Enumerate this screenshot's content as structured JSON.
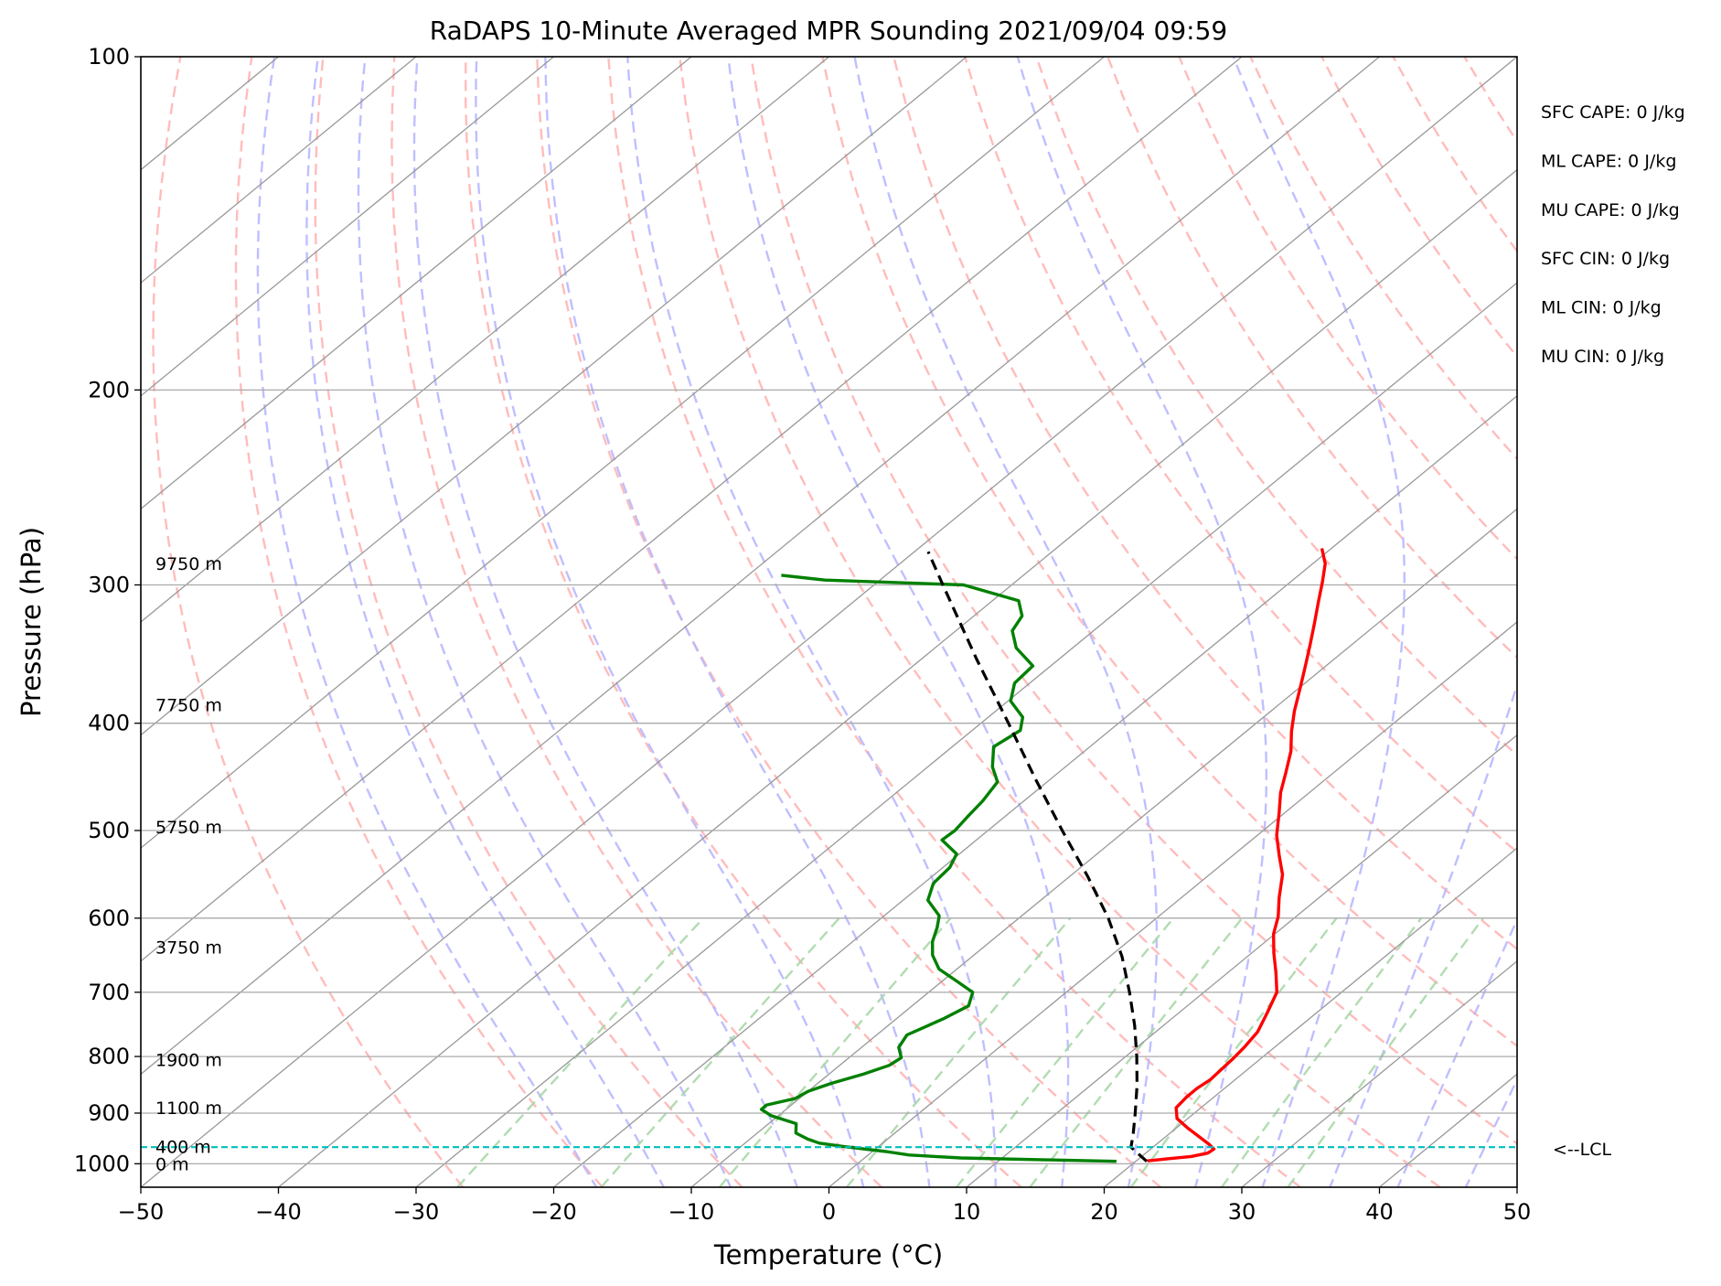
{
  "chart_data": {
    "type": "line",
    "title": "RaDAPS 10-Minute Averaged MPR Sounding 2021/09/04 09:59",
    "xlabel": "Temperature (°C)",
    "ylabel": "Pressure (hPa)",
    "xlim": [
      -50,
      50
    ],
    "ylim": [
      1050,
      100
    ],
    "y_scale": "log",
    "skew_t": true,
    "grid": true,
    "x_ticks": [
      "−50",
      "−40",
      "−30",
      "−20",
      "−10",
      "0",
      "10",
      "20",
      "30",
      "40",
      "50"
    ],
    "y_ticks": [
      "100",
      "200",
      "300",
      "400",
      "500",
      "600",
      "700",
      "800",
      "900",
      "1000"
    ],
    "height_labels": [
      {
        "text": "0 m",
        "p": 1000
      },
      {
        "text": "400 m",
        "p": 965
      },
      {
        "text": "1100 m",
        "p": 890
      },
      {
        "text": "1900 m",
        "p": 805
      },
      {
        "text": "3750 m",
        "p": 637
      },
      {
        "text": "5750 m",
        "p": 496
      },
      {
        "text": "7750 m",
        "p": 385
      },
      {
        "text": "9750 m",
        "p": 287
      }
    ],
    "indices": [
      "SFC CAPE: 0 J/kg",
      "ML CAPE: 0 J/kg",
      "MU CAPE: 0 J/kg",
      "SFC CIN: 0 J/kg",
      "ML CIN: 0 J/kg",
      "MU CIN: 0 J/kg"
    ],
    "lcl_label": "<--LCL",
    "lcl_pressure": 966,
    "colors": {
      "temperature": "#ff0000",
      "dewpoint": "#008000",
      "parcel": "#000000",
      "lcl": "#00bfbf",
      "dry_adiabats": "#ffb0b0",
      "moist_adiabats": "#b8b8ff",
      "mixing_ratio": "#a8d8a8",
      "isotherms": "#999999",
      "isobars": "#aaaaaa"
    },
    "series": [
      {
        "key": "temperature",
        "points": [
          [
            994,
            20.8
          ],
          [
            990,
            22.0
          ],
          [
            985,
            23.6
          ],
          [
            978,
            24.5
          ],
          [
            970,
            24.6
          ],
          [
            960,
            23.8
          ],
          [
            945,
            22.4
          ],
          [
            928,
            20.8
          ],
          [
            910,
            19.2
          ],
          [
            890,
            18.2
          ],
          [
            870,
            18.0
          ],
          [
            855,
            18.0
          ],
          [
            840,
            18.2
          ],
          [
            823,
            18.1
          ],
          [
            805,
            18.0
          ],
          [
            785,
            17.8
          ],
          [
            760,
            17.4
          ],
          [
            730,
            16.4
          ],
          [
            700,
            15.3
          ],
          [
            672,
            13.5
          ],
          [
            645,
            11.6
          ],
          [
            620,
            9.9
          ],
          [
            598,
            8.7
          ],
          [
            575,
            7.1
          ],
          [
            548,
            5.3
          ],
          [
            527,
            3.4
          ],
          [
            505,
            1.4
          ],
          [
            482,
            -0.4
          ],
          [
            462,
            -2.1
          ],
          [
            443,
            -3.5
          ],
          [
            424,
            -5.0
          ],
          [
            407,
            -6.7
          ],
          [
            390,
            -8.3
          ],
          [
            372,
            -9.9
          ],
          [
            356,
            -11.4
          ],
          [
            340,
            -13.0
          ],
          [
            325,
            -14.6
          ],
          [
            310,
            -16.3
          ],
          [
            298,
            -17.7
          ],
          [
            287,
            -19.1
          ],
          [
            278,
            -20.7
          ]
        ]
      },
      {
        "key": "dewpoint",
        "points": [
          [
            995,
            18.6
          ],
          [
            992,
            13.5
          ],
          [
            988,
            7.0
          ],
          [
            982,
            3.0
          ],
          [
            975,
            1.0
          ],
          [
            965,
            -2.5
          ],
          [
            958,
            -4.6
          ],
          [
            950,
            -5.8
          ],
          [
            938,
            -7.2
          ],
          [
            920,
            -8.0
          ],
          [
            905,
            -10.5
          ],
          [
            893,
            -11.8
          ],
          [
            885,
            -11.8
          ],
          [
            873,
            -10.3
          ],
          [
            860,
            -10.0
          ],
          [
            846,
            -9.0
          ],
          [
            830,
            -7.5
          ],
          [
            815,
            -6.4
          ],
          [
            802,
            -6.2
          ],
          [
            785,
            -7.3
          ],
          [
            765,
            -7.8
          ],
          [
            740,
            -6.6
          ],
          [
            720,
            -5.9
          ],
          [
            700,
            -6.8
          ],
          [
            685,
            -8.8
          ],
          [
            667,
            -11.3
          ],
          [
            648,
            -13.0
          ],
          [
            630,
            -14.2
          ],
          [
            612,
            -15.1
          ],
          [
            597,
            -16.0
          ],
          [
            578,
            -18.2
          ],
          [
            558,
            -19.3
          ],
          [
            540,
            -19.5
          ],
          [
            525,
            -20.2
          ],
          [
            510,
            -22.5
          ],
          [
            500,
            -22.4
          ],
          [
            486,
            -22.7
          ],
          [
            470,
            -23.0
          ],
          [
            452,
            -23.6
          ],
          [
            438,
            -25.3
          ],
          [
            420,
            -27.0
          ],
          [
            406,
            -26.5
          ],
          [
            395,
            -27.5
          ],
          [
            382,
            -29.8
          ],
          [
            368,
            -31.1
          ],
          [
            355,
            -31.3
          ],
          [
            342,
            -34.1
          ],
          [
            330,
            -35.9
          ],
          [
            320,
            -36.5
          ],
          [
            310,
            -38.1
          ],
          [
            300,
            -43.5
          ],
          [
            297,
            -54.0
          ],
          [
            294,
            -57.6
          ]
        ]
      },
      {
        "key": "parcel",
        "points": [
          [
            995,
            20.8
          ],
          [
            978,
            19.4
          ],
          [
            966,
            18.4
          ],
          [
            940,
            17.4
          ],
          [
            900,
            15.7
          ],
          [
            850,
            13.4
          ],
          [
            800,
            10.8
          ],
          [
            750,
            7.9
          ],
          [
            700,
            4.6
          ],
          [
            650,
            0.9
          ],
          [
            600,
            -3.5
          ],
          [
            550,
            -8.7
          ],
          [
            500,
            -14.6
          ],
          [
            450,
            -21.0
          ],
          [
            400,
            -28.0
          ],
          [
            350,
            -36.0
          ],
          [
            300,
            -45.0
          ],
          [
            280,
            -49.0
          ]
        ]
      }
    ]
  }
}
